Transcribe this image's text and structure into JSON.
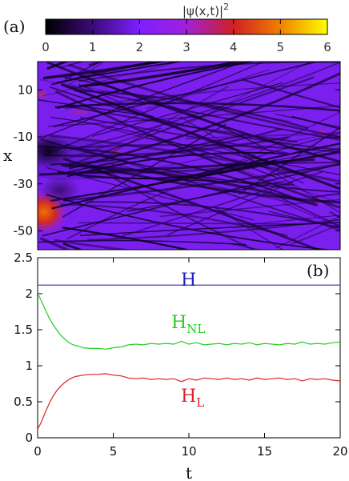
{
  "chart_data": [
    {
      "type": "heatmap",
      "panel_label": "(a)",
      "colorbar": {
        "label": "|ψ(x,t)|²",
        "label_base": "|ψ(x,t)|",
        "label_exp": "2",
        "ticks": [
          "0",
          "1",
          "2",
          "3",
          "4",
          "5",
          "6"
        ],
        "range": [
          0,
          6
        ],
        "colors": [
          "#000000",
          "#3b0a7a",
          "#7d1fff",
          "#a020d8",
          "#d02020",
          "#f08000",
          "#ffff00"
        ]
      },
      "ylabel": "x",
      "yticks": [
        "10",
        "-10",
        "-30",
        "-50"
      ],
      "yrange": [
        -58,
        22
      ],
      "xrange": [
        0,
        20
      ]
    },
    {
      "type": "line",
      "panel_label": "(b)",
      "xlabel": "t",
      "xticks": [
        "0",
        "5",
        "10",
        "15",
        "20"
      ],
      "yticks": [
        "0",
        "0.5",
        "1",
        "1.5",
        "2",
        "2.5"
      ],
      "xlim": [
        0,
        20
      ],
      "ylim": [
        0,
        2.5
      ],
      "series": [
        {
          "name": "H",
          "color": "#3030b0",
          "x": [
            0,
            20
          ],
          "y": [
            2.12,
            2.12
          ]
        },
        {
          "name": "H_NL",
          "name_base": "H",
          "name_sub": "NL",
          "color": "#22cc22",
          "x": [
            0,
            0.25,
            0.5,
            0.75,
            1,
            1.25,
            1.5,
            1.75,
            2,
            2.25,
            2.5,
            2.75,
            3,
            3.5,
            4,
            4.5,
            5,
            5.5,
            6,
            6.5,
            7,
            7.5,
            8,
            8.5,
            9,
            9.5,
            10,
            10.5,
            11,
            11.5,
            12,
            12.5,
            13,
            13.5,
            14,
            14.5,
            15,
            15.5,
            16,
            16.5,
            17,
            17.5,
            18,
            18.5,
            19,
            19.5,
            20
          ],
          "y": [
            2.0,
            1.9,
            1.78,
            1.67,
            1.58,
            1.5,
            1.43,
            1.38,
            1.33,
            1.3,
            1.28,
            1.27,
            1.25,
            1.24,
            1.24,
            1.23,
            1.25,
            1.26,
            1.29,
            1.3,
            1.29,
            1.31,
            1.3,
            1.31,
            1.3,
            1.34,
            1.3,
            1.32,
            1.29,
            1.3,
            1.31,
            1.29,
            1.31,
            1.3,
            1.32,
            1.29,
            1.31,
            1.3,
            1.29,
            1.31,
            1.3,
            1.33,
            1.3,
            1.31,
            1.3,
            1.32,
            1.33
          ]
        },
        {
          "name": "H_L",
          "name_base": "H",
          "name_sub": "L",
          "color": "#dd2222",
          "x": [
            0,
            0.25,
            0.5,
            0.75,
            1,
            1.25,
            1.5,
            1.75,
            2,
            2.25,
            2.5,
            2.75,
            3,
            3.5,
            4,
            4.5,
            5,
            5.5,
            6,
            6.5,
            7,
            7.5,
            8,
            8.5,
            9,
            9.5,
            10,
            10.5,
            11,
            11.5,
            12,
            12.5,
            13,
            13.5,
            14,
            14.5,
            15,
            15.5,
            16,
            16.5,
            17,
            17.5,
            18,
            18.5,
            19,
            19.5,
            20
          ],
          "y": [
            0.12,
            0.22,
            0.35,
            0.47,
            0.57,
            0.65,
            0.71,
            0.76,
            0.8,
            0.83,
            0.85,
            0.86,
            0.87,
            0.88,
            0.88,
            0.89,
            0.87,
            0.86,
            0.83,
            0.82,
            0.83,
            0.81,
            0.82,
            0.81,
            0.82,
            0.78,
            0.82,
            0.8,
            0.83,
            0.82,
            0.81,
            0.83,
            0.81,
            0.82,
            0.8,
            0.83,
            0.81,
            0.82,
            0.83,
            0.81,
            0.82,
            0.79,
            0.82,
            0.81,
            0.82,
            0.8,
            0.79
          ]
        }
      ]
    }
  ]
}
